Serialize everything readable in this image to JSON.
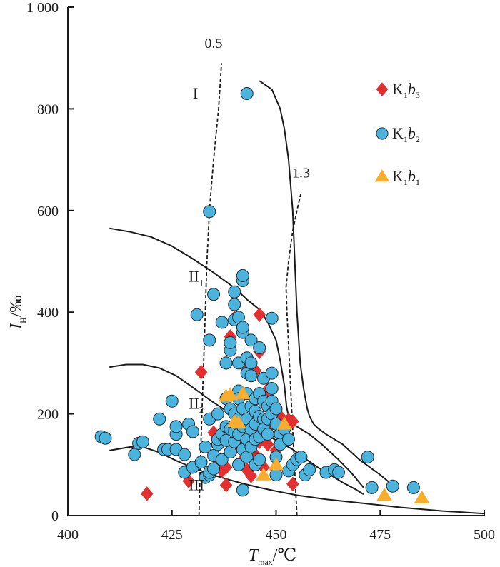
{
  "chart_data": {
    "type": "scatter",
    "title": "",
    "xlabel": {
      "main": "T",
      "sub": "max",
      "unit": "/℃"
    },
    "ylabel": {
      "main": "I",
      "sub": "H",
      "unit": "/‰"
    },
    "xlim": [
      400,
      500
    ],
    "ylim": [
      0,
      1000
    ],
    "x_ticks": [
      {
        "value": 400,
        "label": "400"
      },
      {
        "value": 425,
        "label": "425"
      },
      {
        "value": 450,
        "label": "450"
      },
      {
        "value": 475,
        "label": "475"
      },
      {
        "value": 500,
        "label": "500"
      }
    ],
    "y_ticks": [
      {
        "value": 0,
        "label": "0"
      },
      {
        "value": 200,
        "label": "200"
      },
      {
        "value": 400,
        "label": "400"
      },
      {
        "value": 600,
        "label": "600"
      },
      {
        "value": 800,
        "label": "800"
      },
      {
        "value": 1000,
        "label": "1 000"
      }
    ],
    "grid": false,
    "legend_position": "top-right",
    "colors": {
      "K1b3": "#e23030",
      "K1b2": "#4cb3dc",
      "K1b1": "#f7ad2d",
      "axis": "#1a1a1a"
    },
    "series": [
      {
        "name": "K1b3",
        "legend": {
          "base": "K",
          "sub1": "1",
          "mid": "b",
          "sub2": "3"
        },
        "marker": "diamond",
        "points": [
          [
            419,
            43
          ],
          [
            429,
            68
          ],
          [
            432,
            282
          ],
          [
            435,
            163
          ],
          [
            436,
            108
          ],
          [
            437,
            88
          ],
          [
            438,
            60
          ],
          [
            438,
            95
          ],
          [
            438,
            300
          ],
          [
            439,
            162
          ],
          [
            439,
            352
          ],
          [
            440,
            388
          ],
          [
            440,
            130
          ],
          [
            441,
            180
          ],
          [
            441,
            150
          ],
          [
            442,
            110
          ],
          [
            442,
            300
          ],
          [
            443,
            90
          ],
          [
            443,
            145
          ],
          [
            444,
            165
          ],
          [
            444,
            78
          ],
          [
            445,
            120
          ],
          [
            445,
            285
          ],
          [
            446,
            395
          ],
          [
            446,
            322
          ],
          [
            446,
            145
          ],
          [
            447,
            95
          ],
          [
            447,
            160
          ],
          [
            448,
            248
          ],
          [
            448,
            140
          ],
          [
            449,
            180
          ],
          [
            450,
            128
          ],
          [
            450,
            90
          ],
          [
            451,
            195
          ],
          [
            451,
            160
          ],
          [
            452,
            178
          ],
          [
            453,
            188
          ],
          [
            454,
            62
          ],
          [
            454,
            185
          ]
        ]
      },
      {
        "name": "K1b2",
        "legend": {
          "base": "K",
          "sub1": "1",
          "mid": "b",
          "sub2": "2"
        },
        "marker": "circle",
        "points": [
          [
            408,
            155
          ],
          [
            409,
            152
          ],
          [
            416,
            120
          ],
          [
            417,
            142
          ],
          [
            418,
            145
          ],
          [
            422,
            190
          ],
          [
            423,
            130
          ],
          [
            424,
            130
          ],
          [
            425,
            225
          ],
          [
            426,
            130
          ],
          [
            426,
            160
          ],
          [
            426,
            175
          ],
          [
            428,
            85
          ],
          [
            428,
            120
          ],
          [
            429,
            180
          ],
          [
            430,
            95
          ],
          [
            430,
            165
          ],
          [
            431,
            395
          ],
          [
            432,
            105
          ],
          [
            433,
            75
          ],
          [
            433,
            135
          ],
          [
            434,
            80
          ],
          [
            434,
            85
          ],
          [
            434,
            190
          ],
          [
            434,
            345
          ],
          [
            434,
            598
          ],
          [
            435,
            92
          ],
          [
            435,
            118
          ],
          [
            435,
            435
          ],
          [
            436,
            200
          ],
          [
            436,
            140
          ],
          [
            436,
            150
          ],
          [
            437,
            380
          ],
          [
            437,
            110
          ],
          [
            437,
            160
          ],
          [
            438,
            230
          ],
          [
            438,
            175
          ],
          [
            438,
            148
          ],
          [
            438,
            300
          ],
          [
            439,
            125
          ],
          [
            439,
            170
          ],
          [
            439,
            325
          ],
          [
            439,
            210
          ],
          [
            439,
            340
          ],
          [
            440,
            385
          ],
          [
            440,
            415
          ],
          [
            440,
            440
          ],
          [
            440,
            175
          ],
          [
            440,
            200
          ],
          [
            440,
            145
          ],
          [
            440,
            165
          ],
          [
            441,
            245
          ],
          [
            441,
            230
          ],
          [
            441,
            190
          ],
          [
            441,
            160
          ],
          [
            441,
            100
          ],
          [
            441,
            390
          ],
          [
            441,
            300
          ],
          [
            442,
            462
          ],
          [
            442,
            472
          ],
          [
            442,
            360
          ],
          [
            442,
            370
          ],
          [
            442,
            210
          ],
          [
            442,
            175
          ],
          [
            442,
            130
          ],
          [
            442,
            50
          ],
          [
            443,
            830
          ],
          [
            443,
            310
          ],
          [
            443,
            280
          ],
          [
            443,
            240
          ],
          [
            443,
            190
          ],
          [
            443,
            150
          ],
          [
            443,
            115
          ],
          [
            444,
            300
          ],
          [
            444,
            345
          ],
          [
            444,
            275
          ],
          [
            444,
            215
          ],
          [
            444,
            170
          ],
          [
            444,
            135
          ],
          [
            445,
            230
          ],
          [
            445,
            180
          ],
          [
            445,
            205
          ],
          [
            445,
            150
          ],
          [
            445,
            100
          ],
          [
            446,
            330
          ],
          [
            446,
            240
          ],
          [
            446,
            195
          ],
          [
            446,
            155
          ],
          [
            446,
            110
          ],
          [
            447,
            270
          ],
          [
            447,
            225
          ],
          [
            447,
            190
          ],
          [
            447,
            170
          ],
          [
            448,
            215
          ],
          [
            448,
            190
          ],
          [
            448,
            160
          ],
          [
            449,
            280
          ],
          [
            449,
            250
          ],
          [
            449,
            225
          ],
          [
            449,
            388
          ],
          [
            449,
            200
          ],
          [
            450,
            210
          ],
          [
            450,
            180
          ],
          [
            450,
            115
          ],
          [
            450,
            80
          ],
          [
            451,
            160
          ],
          [
            451,
            140
          ],
          [
            452,
            170
          ],
          [
            453,
            150
          ],
          [
            453,
            88
          ],
          [
            454,
            100
          ],
          [
            455,
            110
          ],
          [
            456,
            115
          ],
          [
            457,
            80
          ],
          [
            458,
            90
          ],
          [
            462,
            85
          ],
          [
            464,
            90
          ],
          [
            465,
            85
          ],
          [
            472,
            115
          ],
          [
            473,
            55
          ],
          [
            478,
            58
          ],
          [
            483,
            55
          ]
        ]
      },
      {
        "name": "K1b1",
        "legend": {
          "base": "K",
          "sub1": "1",
          "mid": "b",
          "sub2": "1"
        },
        "marker": "triangle",
        "points": [
          [
            438,
            235
          ],
          [
            439,
            238
          ],
          [
            440,
            185
          ],
          [
            441,
            182
          ],
          [
            442,
            240
          ],
          [
            447,
            80
          ],
          [
            450,
            100
          ],
          [
            452,
            180
          ],
          [
            476,
            40
          ],
          [
            485,
            35
          ]
        ]
      }
    ],
    "region_labels": [
      {
        "label": "I",
        "sub": "",
        "x": 430,
        "y": 820
      },
      {
        "label": "II",
        "sub": "1",
        "x": 429,
        "y": 460
      },
      {
        "label": "II",
        "sub": "2",
        "x": 429,
        "y": 210
      },
      {
        "label": "III",
        "sub": "",
        "x": 429,
        "y": 50
      }
    ],
    "boundary_curves": [
      {
        "name": "I-II1",
        "points": [
          [
            446,
            855
          ],
          [
            449,
            838
          ],
          [
            451,
            800
          ],
          [
            452,
            760
          ],
          [
            453,
            700
          ],
          [
            454,
            600
          ],
          [
            454.5,
            500
          ],
          [
            455,
            400
          ],
          [
            455.8,
            300
          ],
          [
            456.6,
            250
          ],
          [
            457.5,
            210
          ],
          [
            458,
            196
          ],
          [
            459,
            180
          ],
          [
            460,
            172
          ],
          [
            462,
            160
          ],
          [
            466,
            140
          ],
          [
            470,
            110
          ],
          [
            475,
            80
          ],
          [
            478,
            60
          ],
          [
            479,
            50
          ]
        ]
      },
      {
        "name": "II1-II2",
        "points": [
          [
            410,
            565
          ],
          [
            415,
            558
          ],
          [
            420,
            548
          ],
          [
            425,
            530
          ],
          [
            430,
            505
          ],
          [
            435,
            478
          ],
          [
            440,
            448
          ],
          [
            443,
            425
          ],
          [
            446,
            405
          ],
          [
            448,
            380
          ],
          [
            450,
            345
          ],
          [
            451,
            305
          ],
          [
            452,
            255
          ],
          [
            452.5,
            215
          ],
          [
            453,
            195
          ],
          [
            454,
            180
          ],
          [
            456,
            170
          ],
          [
            458,
            160
          ],
          [
            461,
            140
          ],
          [
            465,
            110
          ],
          [
            468,
            85
          ],
          [
            470,
            65
          ],
          [
            471,
            55
          ]
        ]
      },
      {
        "name": "II2-III",
        "points": [
          [
            410,
            292
          ],
          [
            414,
            297
          ],
          [
            418,
            297
          ],
          [
            422,
            290
          ],
          [
            426,
            275
          ],
          [
            430,
            252
          ],
          [
            434,
            228
          ],
          [
            438,
            206
          ],
          [
            442,
            185
          ],
          [
            446,
            167
          ],
          [
            450,
            148
          ],
          [
            454,
            130
          ],
          [
            457,
            112
          ],
          [
            460,
            95
          ],
          [
            463,
            80
          ],
          [
            466,
            65
          ],
          [
            469,
            52
          ],
          [
            471,
            42
          ]
        ]
      },
      {
        "name": "III-lower",
        "points": [
          [
            410,
            128
          ],
          [
            415,
            135
          ],
          [
            418,
            135
          ],
          [
            422,
            124
          ],
          [
            426,
            108
          ],
          [
            430,
            94
          ],
          [
            434,
            82
          ],
          [
            438,
            72
          ],
          [
            442,
            63
          ],
          [
            446,
            55
          ],
          [
            450,
            48
          ],
          [
            455,
            40
          ],
          [
            462,
            32
          ],
          [
            470,
            25
          ],
          [
            480,
            16
          ],
          [
            490,
            9
          ],
          [
            500,
            4
          ]
        ]
      }
    ],
    "ro_lines": [
      {
        "label": "0.5",
        "points": [
          [
            431.5,
            0
          ],
          [
            431.8,
            100
          ],
          [
            432.2,
            200
          ],
          [
            432.6,
            300
          ],
          [
            433,
            400
          ],
          [
            433.4,
            500
          ],
          [
            434,
            600
          ],
          [
            435,
            700
          ],
          [
            436.2,
            800
          ],
          [
            436.9,
            890
          ]
        ],
        "label_x": 435,
        "label_y": 920
      },
      {
        "label": "1.3",
        "points": [
          [
            455,
            0
          ],
          [
            454.4,
            100
          ],
          [
            453.8,
            200
          ],
          [
            453.2,
            300
          ],
          [
            452.6,
            400
          ],
          [
            452.4,
            450
          ],
          [
            453,
            500
          ],
          [
            454,
            560
          ],
          [
            455,
            600
          ],
          [
            456,
            635
          ]
        ],
        "label_x": 456,
        "label_y": 665
      }
    ]
  }
}
